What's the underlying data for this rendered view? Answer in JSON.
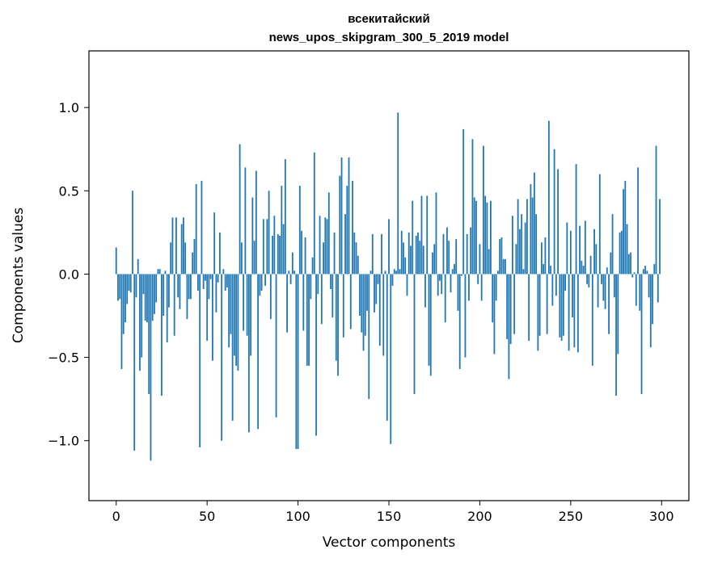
{
  "chart_data": {
    "type": "bar",
    "title_line1": "всекитайский",
    "title_line2": "news_upos_skipgram_300_5_2019 model",
    "xlabel": "Vector components",
    "ylabel": "Components values",
    "xlim": [
      -15,
      315
    ],
    "ylim": [
      -1.36,
      1.34
    ],
    "xticks": [
      0,
      50,
      100,
      150,
      200,
      250,
      300
    ],
    "xtick_labels": [
      "0",
      "50",
      "100",
      "150",
      "200",
      "250",
      "300"
    ],
    "yticks": [
      -1.0,
      -0.5,
      0.0,
      0.5,
      1.0
    ],
    "ytick_labels": [
      "−1.0",
      "−0.5",
      "0.0",
      "0.5",
      "1.0"
    ],
    "bar_color": "#1f77b4",
    "values": [
      0.16,
      -0.16,
      -0.15,
      -0.57,
      -0.36,
      -0.29,
      -0.18,
      -0.1,
      -0.11,
      0.5,
      -1.06,
      -0.14,
      0.09,
      -0.58,
      -0.5,
      -0.12,
      -0.28,
      -0.29,
      -0.72,
      -1.12,
      -0.28,
      -0.24,
      -0.17,
      0.03,
      0.03,
      -0.73,
      -0.25,
      0.02,
      -0.41,
      -0.2,
      0.19,
      0.34,
      -0.37,
      0.34,
      -0.14,
      -0.21,
      0.3,
      0.34,
      0.19,
      -0.27,
      -0.15,
      -0.15,
      0.13,
      0.21,
      0.54,
      -0.1,
      -1.04,
      0.56,
      -0.09,
      -0.04,
      -0.4,
      -0.15,
      -0.03,
      -0.52,
      0.37,
      -0.23,
      -0.05,
      0.25,
      -1.0,
      0.03,
      -0.1,
      -0.08,
      -0.44,
      -0.36,
      -0.88,
      -0.49,
      -0.55,
      -0.58,
      0.78,
      0.19,
      -0.34,
      0.64,
      -0.37,
      -0.95,
      -0.49,
      0.46,
      0.2,
      0.62,
      -0.93,
      -0.13,
      -0.1,
      0.33,
      -0.07,
      0.33,
      0.5,
      -0.27,
      0.23,
      0.35,
      -0.86,
      0.24,
      0.23,
      0.53,
      0.3,
      0.69,
      -0.35,
      0.02,
      -0.06,
      0.13,
      0.02,
      -1.05,
      -1.05,
      0.53,
      0.26,
      -0.34,
      0.22,
      -0.55,
      -0.55,
      -0.15,
      0.1,
      0.73,
      -0.97,
      -0.12,
      0.35,
      -0.3,
      0.19,
      0.34,
      0.33,
      0.49,
      -0.09,
      -0.26,
      0.25,
      -0.52,
      -0.61,
      0.59,
      0.7,
      -0.38,
      0.36,
      0.53,
      0.7,
      -0.33,
      0.56,
      0.25,
      0.19,
      0.11,
      -0.25,
      -0.35,
      -0.46,
      -0.37,
      -0.22,
      -0.75,
      0.02,
      0.24,
      -0.23,
      -0.18,
      -0.06,
      -0.43,
      0.24,
      -0.49,
      0.02,
      -0.88,
      0.33,
      -1.02,
      -0.07,
      0.03,
      0.02,
      0.97,
      0.03,
      0.26,
      0.19,
      0.1,
      -0.13,
      0.25,
      0.17,
      0.44,
      -0.72,
      0.23,
      0.25,
      0.2,
      0.47,
      0.17,
      -0.2,
      0.47,
      -0.55,
      -0.61,
      0.13,
      0.18,
      0.49,
      -0.13,
      -0.04,
      -0.12,
      0.24,
      -0.29,
      0.28,
      0.2,
      -0.11,
      0.03,
      0.06,
      0.21,
      -0.22,
      -0.57,
      -0.01,
      0.87,
      -0.5,
      0.24,
      -0.16,
      0.28,
      0.81,
      0.46,
      0.44,
      -0.06,
      0.18,
      -0.16,
      0.77,
      0.47,
      0.43,
      0.15,
      0.44,
      -0.29,
      -0.48,
      -0.16,
      0.02,
      0.21,
      0.22,
      0.09,
      0.09,
      -0.39,
      -0.63,
      -0.42,
      0.35,
      -0.36,
      0.18,
      0.45,
      0.27,
      0.36,
      0.03,
      0.31,
      0.45,
      -0.4,
      0.54,
      0.46,
      0.61,
      0.36,
      -0.46,
      -0.37,
      0.19,
      0.06,
      0.22,
      -0.36,
      0.92,
      0.05,
      -0.19,
      0.75,
      -0.13,
      0.63,
      -0.38,
      -0.4,
      -0.37,
      -0.1,
      0.31,
      -0.46,
      0.26,
      -0.26,
      -0.44,
      0.66,
      -0.47,
      0.29,
      0.08,
      0.05,
      0.32,
      -0.06,
      -0.08,
      0.11,
      -0.55,
      0.27,
      0.18,
      -0.2,
      0.6,
      -0.06,
      -0.16,
      -0.21,
      0.04,
      -0.36,
      0.13,
      0.36,
      -0.14,
      -0.73,
      -0.48,
      0.25,
      0.26,
      0.51,
      0.56,
      0.3,
      0.12,
      0.13,
      -0.02,
      0.01,
      -0.19,
      0.64,
      -0.22,
      -0.72,
      0.03,
      0.05,
      0.02,
      -0.14,
      -0.44,
      -0.3,
      0.06,
      0.77,
      -0.17,
      0.45
    ]
  }
}
